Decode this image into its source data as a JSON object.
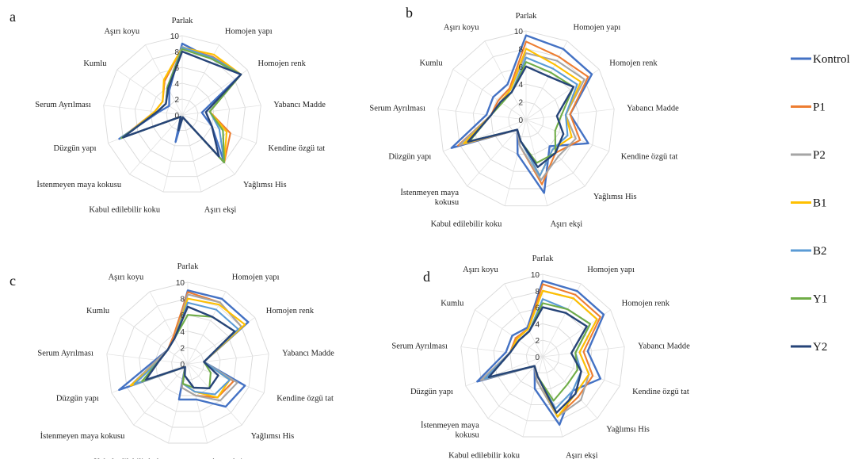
{
  "legend": [
    {
      "name": "Kontrol",
      "color": "#4472C4"
    },
    {
      "name": "P1",
      "color": "#ED7D31"
    },
    {
      "name": "P2",
      "color": "#A5A5A5"
    },
    {
      "name": "B1",
      "color": "#FFC000"
    },
    {
      "name": "B2",
      "color": "#5B9BD5"
    },
    {
      "name": "Y1",
      "color": "#70AD47"
    },
    {
      "name": "Y2",
      "color": "#264478"
    }
  ],
  "chart_data": [
    {
      "type": "radar",
      "panel_label": "a",
      "axes": [
        "Parlak",
        "Homojen yapı",
        "Homojen renk",
        "Yabancı Madde",
        "Kendine özgü tat",
        "Yağlımsı His",
        "Aşırı ekşi",
        "Kabul edilebilir koku",
        "İstenmeyen maya kokusu",
        "Düzgün yapı",
        "Serum Ayrılması",
        "Kumlu",
        "Aşırı koyu"
      ],
      "rlim": [
        0,
        10
      ],
      "ticks": [
        "0",
        "2",
        "4",
        "6",
        "8",
        "10"
      ],
      "series": [
        {
          "name": "Kontrol",
          "values": [
            9.0,
            8.0,
            9.0,
            2.5,
            4.0,
            8.0,
            0.3,
            3.5,
            0.3,
            8.5,
            3.0,
            2.0,
            3.5
          ]
        },
        {
          "name": "P1",
          "values": [
            8.5,
            8.3,
            9.0,
            3.5,
            6.5,
            8.0,
            0.3,
            2.0,
            0.3,
            8.2,
            3.5,
            3.0,
            4.8
          ]
        },
        {
          "name": "P2",
          "values": [
            8.6,
            8.1,
            9.0,
            3.5,
            5.5,
            8.0,
            0.3,
            2.0,
            0.3,
            8.2,
            3.2,
            2.5,
            4.0
          ]
        },
        {
          "name": "B1",
          "values": [
            8.5,
            8.6,
            9.0,
            3.5,
            6.0,
            8.0,
            0.3,
            2.0,
            0.3,
            8.0,
            3.5,
            3.0,
            5.0
          ]
        },
        {
          "name": "B2",
          "values": [
            8.5,
            8.2,
            9.0,
            3.5,
            5.0,
            8.0,
            0.3,
            2.0,
            0.3,
            8.3,
            3.2,
            2.5,
            4.0
          ]
        },
        {
          "name": "Y1",
          "values": [
            8.3,
            8.0,
            9.0,
            3.5,
            5.5,
            8.0,
            0.3,
            2.0,
            0.3,
            8.2,
            3.2,
            2.5,
            4.0
          ]
        },
        {
          "name": "Y2",
          "values": [
            8.0,
            7.5,
            9.0,
            3.0,
            4.0,
            7.0,
            0.3,
            2.0,
            0.3,
            8.0,
            3.2,
            2.5,
            3.8
          ]
        }
      ]
    },
    {
      "type": "radar",
      "panel_label": "b",
      "axes": [
        "Parlak",
        "Homojen yapı",
        "Homojen renk",
        "Yabancı Madde",
        "Kendine özgü tat",
        "Yağlımsı His",
        "Aşırı ekşi",
        "Kabul edilebilir koku",
        "İstenmeyen maya kokusu",
        "Düzgün yapı",
        "Serum Ayrılması",
        "Kumlu",
        "Aşırı koyu"
      ],
      "rlim": [
        0,
        10
      ],
      "ticks": [
        "0",
        "2",
        "4",
        "6",
        "8",
        "10"
      ],
      "series": [
        {
          "name": "Kontrol",
          "values": [
            9.5,
            9.0,
            9.0,
            5.0,
            7.5,
            4.0,
            8.5,
            4.0,
            1.5,
            9.0,
            4.5,
            4.5,
            4.5
          ]
        },
        {
          "name": "P1",
          "values": [
            8.8,
            8.0,
            8.5,
            5.0,
            6.5,
            5.0,
            7.5,
            3.0,
            1.5,
            8.2,
            4.0,
            3.8,
            4.0
          ]
        },
        {
          "name": "P2",
          "values": [
            7.5,
            7.5,
            8.0,
            4.5,
            6.0,
            5.5,
            7.0,
            3.0,
            1.5,
            8.0,
            4.0,
            3.5,
            3.8
          ]
        },
        {
          "name": "B1",
          "values": [
            8.0,
            7.0,
            7.5,
            4.5,
            5.5,
            4.5,
            6.5,
            2.5,
            1.5,
            7.5,
            4.0,
            3.5,
            3.8
          ]
        },
        {
          "name": "B2",
          "values": [
            7.0,
            6.5,
            7.0,
            4.5,
            5.0,
            4.5,
            6.5,
            2.5,
            1.5,
            7.0,
            4.0,
            3.5,
            3.5
          ]
        },
        {
          "name": "Y1",
          "values": [
            6.5,
            6.0,
            6.5,
            4.0,
            3.5,
            5.0,
            5.0,
            2.5,
            1.5,
            6.8,
            4.0,
            3.3,
            3.5
          ]
        },
        {
          "name": "Y2",
          "values": [
            6.0,
            5.5,
            6.5,
            3.5,
            4.5,
            5.0,
            5.5,
            2.5,
            1.5,
            7.0,
            4.0,
            3.5,
            3.5
          ]
        }
      ]
    },
    {
      "type": "radar",
      "panel_label": "c",
      "axes": [
        "Parlak",
        "Homojen yapı",
        "Homojen renk",
        "Yabancı Madde",
        "Kendine özgü tat",
        "Yağlımsı His",
        "Aşırı ekşi",
        "Kabul edilebilir koku",
        "İstenmeyen maya kokusu",
        "Düzgün yapı",
        "Serum Ayrılması",
        "Kumlu",
        "Aşırı koyu"
      ],
      "rlim": [
        0,
        10
      ],
      "ticks": [
        "0",
        "2",
        "4",
        "6",
        "8",
        "10"
      ],
      "series": [
        {
          "name": "Kontrol",
          "values": [
            9.0,
            9.0,
            9.0,
            2.0,
            7.5,
            7.0,
            4.5,
            4.5,
            0.5,
            9.0,
            4.0,
            3.0,
            3.5
          ]
        },
        {
          "name": "P1",
          "values": [
            8.8,
            8.5,
            8.0,
            2.0,
            6.0,
            5.5,
            4.0,
            3.0,
            0.5,
            7.5,
            3.8,
            3.0,
            3.8
          ]
        },
        {
          "name": "P2",
          "values": [
            8.5,
            8.5,
            8.0,
            2.0,
            6.5,
            6.0,
            4.0,
            3.0,
            0.5,
            7.5,
            3.8,
            3.0,
            3.5
          ]
        },
        {
          "name": "B1",
          "values": [
            8.0,
            8.2,
            8.5,
            2.0,
            5.5,
            5.5,
            3.5,
            2.5,
            0.5,
            7.5,
            3.5,
            3.0,
            3.5
          ]
        },
        {
          "name": "B2",
          "values": [
            7.5,
            7.5,
            7.5,
            2.0,
            5.5,
            5.0,
            3.5,
            2.5,
            0.5,
            7.0,
            3.5,
            3.0,
            3.5
          ]
        },
        {
          "name": "Y1",
          "values": [
            6.0,
            6.5,
            7.0,
            2.0,
            3.0,
            4.0,
            3.0,
            2.5,
            0.5,
            6.0,
            3.5,
            3.0,
            3.5
          ]
        },
        {
          "name": "Y2",
          "values": [
            7.0,
            6.5,
            7.0,
            2.0,
            4.0,
            4.0,
            3.0,
            1.5,
            0.5,
            5.5,
            3.5,
            3.0,
            3.5
          ]
        }
      ]
    },
    {
      "type": "radar",
      "panel_label": "d",
      "axes": [
        "Parlak",
        "Homojen yapı",
        "Homojen renk",
        "Yabancı Madde",
        "Kendine özgü tat",
        "Yağlımsı His",
        "Aşırı ekşi",
        "Kabul edilebilir koku",
        "İstenmeyen maya kokusu",
        "Düzgün yapı",
        "Serum Ayrılması",
        "Kumlu",
        "Aşırı koyu"
      ],
      "rlim": [
        0,
        10
      ],
      "ticks": [
        "0",
        "2",
        "4",
        "6",
        "8",
        "10"
      ],
      "series": [
        {
          "name": "Kontrol",
          "values": [
            9.2,
            9.0,
            9.0,
            5.5,
            7.5,
            5.5,
            8.5,
            4.0,
            1.5,
            8.5,
            4.5,
            4.5,
            4.0
          ]
        },
        {
          "name": "P1",
          "values": [
            8.8,
            8.5,
            8.5,
            5.0,
            6.5,
            6.5,
            7.5,
            3.0,
            1.5,
            8.0,
            4.0,
            4.0,
            3.8
          ]
        },
        {
          "name": "P2",
          "values": [
            8.0,
            8.0,
            8.0,
            4.5,
            6.0,
            7.0,
            7.5,
            3.0,
            1.5,
            8.0,
            4.0,
            3.8,
            3.8
          ]
        },
        {
          "name": "B1",
          "values": [
            8.0,
            8.0,
            8.0,
            4.5,
            6.0,
            6.0,
            7.5,
            2.5,
            1.5,
            7.5,
            4.0,
            3.8,
            3.8
          ]
        },
        {
          "name": "B2",
          "values": [
            7.0,
            6.5,
            7.0,
            4.0,
            5.0,
            5.5,
            6.5,
            2.5,
            1.5,
            7.5,
            4.0,
            3.5,
            3.5
          ]
        },
        {
          "name": "Y1",
          "values": [
            6.5,
            6.5,
            7.0,
            4.0,
            4.5,
            4.5,
            5.5,
            2.5,
            1.5,
            7.0,
            4.0,
            3.5,
            3.5
          ]
        },
        {
          "name": "Y2",
          "values": [
            6.0,
            6.0,
            6.5,
            3.5,
            5.0,
            6.0,
            7.0,
            2.5,
            1.5,
            7.0,
            4.0,
            3.5,
            3.5
          ]
        }
      ]
    }
  ]
}
